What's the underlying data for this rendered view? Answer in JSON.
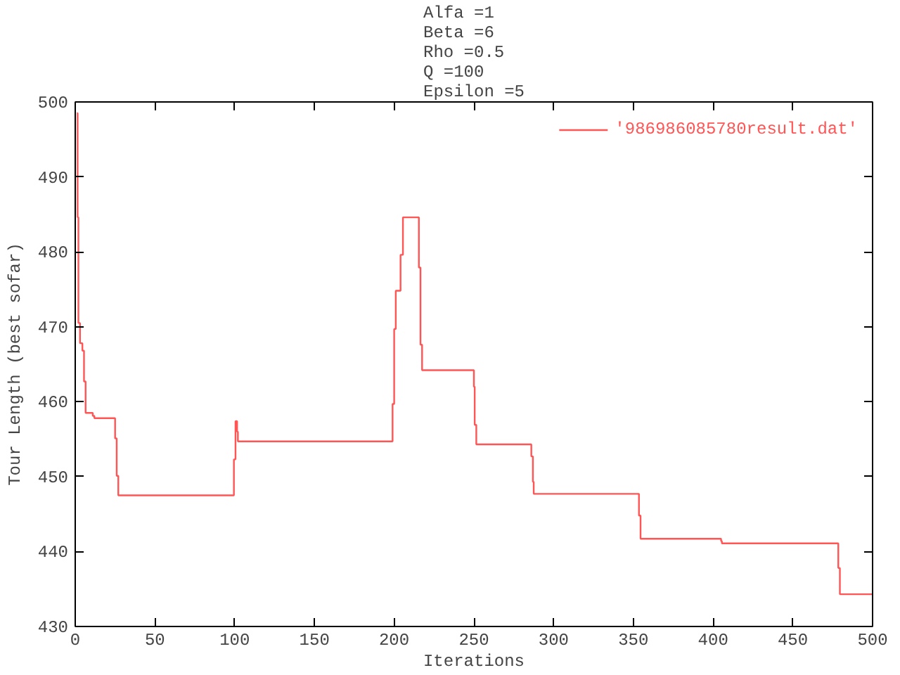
{
  "chart_data": {
    "type": "step",
    "title": "Alfa =1\nBeta =6\nRho =0.5\nQ =100\nEpsilon =5",
    "xlabel": "Iterations",
    "ylabel": "Tour Length (best sofar)",
    "xlim": [
      0,
      500
    ],
    "ylim": [
      430,
      500
    ],
    "xticks": [
      0,
      50,
      100,
      150,
      200,
      250,
      300,
      350,
      400,
      450,
      500
    ],
    "yticks": [
      430,
      440,
      450,
      460,
      470,
      480,
      490,
      500
    ],
    "grid": false,
    "legend": "top right",
    "line_style": "solid",
    "marker": "none",
    "series": [
      {
        "name": "'986986085780result.dat'",
        "color": "#ff5555",
        "x": [
          1,
          1.5,
          2,
          3,
          4.5,
          5.5,
          6.5,
          11,
          12,
          25,
          26,
          27,
          99.5,
          100.5,
          101.5,
          102,
          199,
          200,
          201,
          204,
          205.5,
          215.5,
          216.5,
          217.5,
          250,
          250.5,
          251.5,
          286,
          287,
          287.5,
          353.5,
          354.5,
          405,
          405.5,
          478.5,
          479.5,
          500
        ],
        "values": [
          498.5,
          484.6,
          470.5,
          467.8,
          466.8,
          462.7,
          458.5,
          458.1,
          457.8,
          455.1,
          450.1,
          447.5,
          452.3,
          457.4,
          456.0,
          454.7,
          459.7,
          469.7,
          474.8,
          479.6,
          484.6,
          477.9,
          467.6,
          464.2,
          462.0,
          456.9,
          454.3,
          452.7,
          449.3,
          447.7,
          444.8,
          441.7,
          441.4,
          441.1,
          437.8,
          434.3,
          434.3
        ]
      }
    ]
  }
}
